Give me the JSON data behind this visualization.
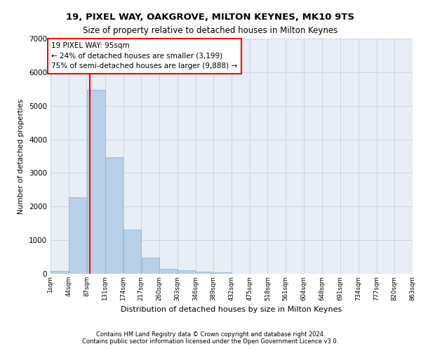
{
  "title1": "19, PIXEL WAY, OAKGROVE, MILTON KEYNES, MK10 9TS",
  "title2": "Size of property relative to detached houses in Milton Keynes",
  "xlabel": "Distribution of detached houses by size in Milton Keynes",
  "ylabel": "Number of detached properties",
  "footnote1": "Contains HM Land Registry data © Crown copyright and database right 2024.",
  "footnote2": "Contains public sector information licensed under the Open Government Licence v3.0.",
  "bar_color": "#b8d0e8",
  "bar_edge_color": "#8ab0d0",
  "grid_color": "#c8d4e4",
  "background_color": "#e8eef6",
  "annotation_text": "19 PIXEL WAY: 95sqm\n← 24% of detached houses are smaller (3,199)\n75% of semi-detached houses are larger (9,888) →",
  "vline_x": 95,
  "vline_color": "red",
  "annotation_box_color": "white",
  "annotation_box_edge": "red",
  "bin_edges": [
    1,
    44,
    87,
    131,
    174,
    217,
    260,
    303,
    346,
    389,
    432,
    475,
    518,
    561,
    604,
    648,
    691,
    734,
    777,
    820,
    863
  ],
  "bar_heights": [
    80,
    2280,
    5480,
    3460,
    1320,
    480,
    155,
    100,
    70,
    40,
    0,
    0,
    0,
    0,
    0,
    0,
    0,
    0,
    0,
    0
  ],
  "ylim": [
    0,
    7000
  ],
  "yticks": [
    0,
    1000,
    2000,
    3000,
    4000,
    5000,
    6000,
    7000
  ],
  "tick_labels": [
    "1sqm",
    "44sqm",
    "87sqm",
    "131sqm",
    "174sqm",
    "217sqm",
    "260sqm",
    "303sqm",
    "346sqm",
    "389sqm",
    "432sqm",
    "475sqm",
    "518sqm",
    "561sqm",
    "604sqm",
    "648sqm",
    "691sqm",
    "734sqm",
    "777sqm",
    "820sqm",
    "863sqm"
  ]
}
